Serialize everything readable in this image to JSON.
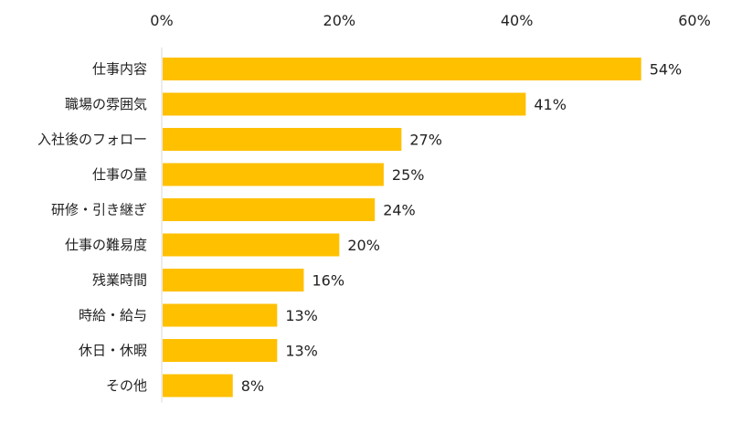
{
  "chart_data": {
    "type": "bar",
    "orientation": "horizontal",
    "categories": [
      "仕事内容",
      "職場の雰囲気",
      "入社後のフォロー",
      "仕事の量",
      "研修・引き継ぎ",
      "仕事の難易度",
      "残業時間",
      "時給・給与",
      "休日・休暇",
      "その他"
    ],
    "values": [
      54,
      41,
      27,
      25,
      24,
      20,
      16,
      13,
      13,
      8
    ],
    "data_labels": [
      "54%",
      "41%",
      "27%",
      "25%",
      "24%",
      "20%",
      "16%",
      "13%",
      "13%",
      "8%"
    ],
    "xlim": [
      0,
      60
    ],
    "xticks": [
      0,
      20,
      40,
      60
    ],
    "xtick_labels": [
      "0%",
      "20%",
      "40%",
      "60%"
    ],
    "x_axis_position": "top",
    "grid": false,
    "legend": "none",
    "title": "",
    "xlabel": "",
    "ylabel": "",
    "bar_color": "#FFC000",
    "axis_color": "#D9D9D9"
  }
}
